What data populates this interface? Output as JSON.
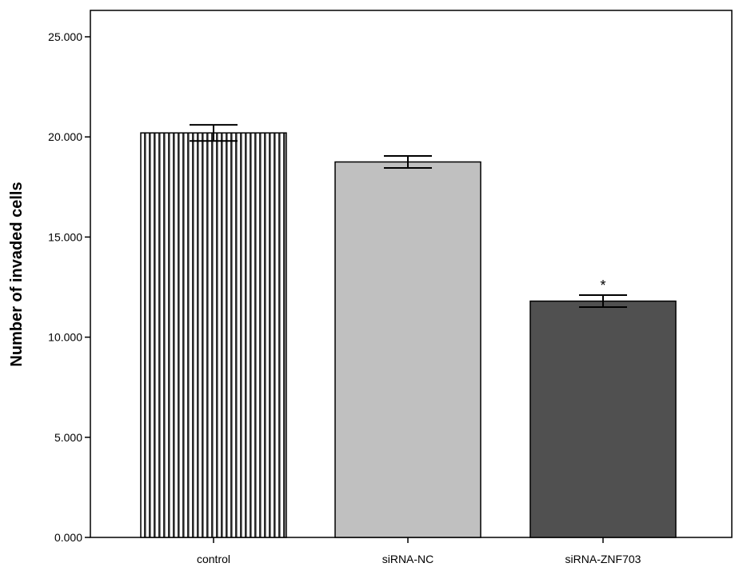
{
  "chart_data": {
    "type": "bar",
    "title": "",
    "xlabel": "",
    "ylabel": "Number of invaded cells",
    "ylim": [
      0,
      25
    ],
    "yticks": [
      "0.000",
      "5.000",
      "10.000",
      "15.000",
      "20.000",
      "25.000"
    ],
    "ytick_values": [
      0,
      5,
      10,
      15,
      20,
      25
    ],
    "categories": [
      "control",
      "siRNA-NC",
      "siRNA-ZNF703"
    ],
    "values": [
      20.2,
      18.75,
      11.8
    ],
    "error": [
      0.4,
      0.3,
      0.3
    ],
    "bar_styles": [
      {
        "fill": "#ffffff",
        "pattern": "vertical-stripes",
        "stroke": "#000000"
      },
      {
        "fill": "#c0c0c0",
        "pattern": "none",
        "stroke": "#000000"
      },
      {
        "fill": "#505050",
        "pattern": "none",
        "stroke": "#000000"
      }
    ],
    "annotations": [
      "",
      "",
      "*"
    ],
    "grid": false,
    "legend": "none"
  }
}
